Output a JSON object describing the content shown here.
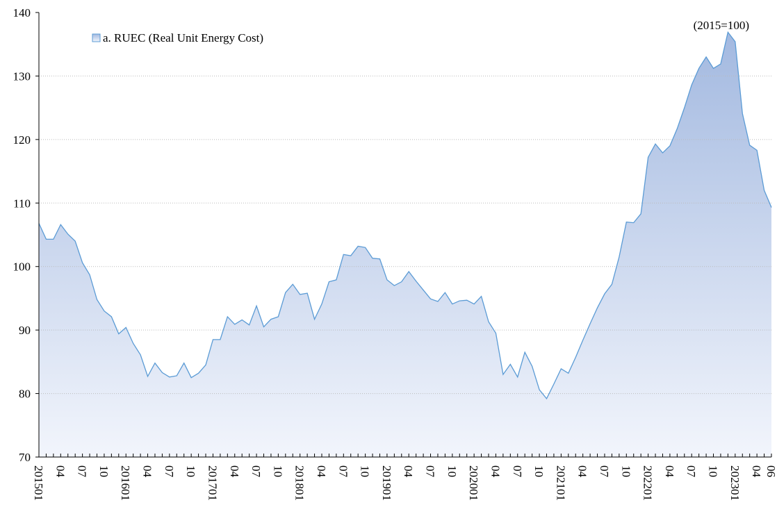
{
  "chart_data": {
    "type": "area",
    "annotation": "(2015=100)",
    "categories": [
      "201501",
      null,
      null,
      "04",
      null,
      null,
      "07",
      null,
      null,
      "10",
      null,
      null,
      "201601",
      null,
      null,
      "04",
      null,
      null,
      "07",
      null,
      null,
      "10",
      null,
      null,
      "201701",
      null,
      null,
      "04",
      null,
      null,
      "07",
      null,
      null,
      "10",
      null,
      null,
      "201801",
      null,
      null,
      "04",
      null,
      null,
      "07",
      null,
      null,
      "10",
      null,
      null,
      "201901",
      null,
      null,
      "04",
      null,
      null,
      "07",
      null,
      null,
      "10",
      null,
      null,
      "202001",
      null,
      null,
      "04",
      null,
      null,
      "07",
      null,
      null,
      "10",
      null,
      null,
      "202101",
      null,
      null,
      "04",
      null,
      null,
      "07",
      null,
      null,
      "10",
      null,
      null,
      "202201",
      null,
      null,
      "04",
      null,
      null,
      "07",
      null,
      null,
      "10",
      null,
      null,
      "202301",
      null,
      null,
      "04",
      null,
      "06"
    ],
    "series": [
      {
        "name": "a. RUEC (Real Unit Energy Cost)",
        "color": "#5b9bd5",
        "fill_top": "#a3b9e0",
        "fill_bottom": "#f2f5fc",
        "values": [
          106.8,
          104.3,
          104.3,
          106.6,
          105.1,
          104.0,
          100.6,
          98.7,
          94.8,
          93.0,
          92.1,
          89.4,
          90.4,
          87.9,
          86.1,
          82.7,
          84.8,
          83.3,
          82.6,
          82.8,
          84.8,
          82.5,
          83.2,
          84.5,
          88.5,
          88.5,
          92.1,
          90.9,
          91.6,
          90.8,
          93.8,
          90.5,
          91.7,
          92.1,
          95.9,
          97.2,
          95.6,
          95.8,
          91.7,
          94.1,
          97.6,
          97.9,
          101.9,
          101.7,
          103.2,
          103.0,
          101.3,
          101.2,
          97.9,
          97.0,
          97.6,
          99.2,
          97.7,
          96.3,
          94.9,
          94.5,
          95.9,
          94.1,
          94.6,
          94.7,
          94.1,
          95.3,
          91.3,
          89.5,
          83.0,
          84.6,
          82.6,
          86.5,
          84.3,
          80.6,
          79.2,
          81.5,
          83.9,
          83.2,
          85.7,
          88.4,
          91.0,
          93.5,
          95.7,
          97.2,
          101.5,
          107.0,
          106.9,
          108.3,
          117.2,
          119.3,
          117.9,
          119.0,
          121.7,
          125.0,
          128.6,
          131.2,
          133.0,
          131.2,
          131.9,
          136.9,
          135.4,
          124.1,
          119.1,
          118.3,
          112.0,
          109.3
        ]
      }
    ],
    "ylim": [
      70,
      140
    ],
    "yticks": [
      70,
      80,
      90,
      100,
      110,
      120,
      130,
      140
    ],
    "grid": true,
    "legend": "upper-left"
  }
}
